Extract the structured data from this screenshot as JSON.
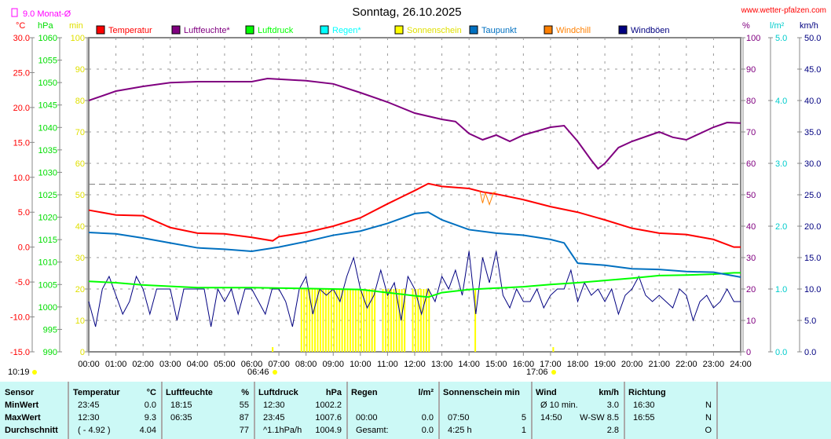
{
  "header": {
    "title": "Sonntag, 26.10.2025",
    "site": "www.wetter-pfalzen.com",
    "month_avg": "9.0 Monat-Ø"
  },
  "units": {
    "temp": "°C",
    "press": "hPa",
    "sun": "min",
    "hum": "%",
    "rain": "l/m²",
    "wind": "km/h"
  },
  "legend": [
    {
      "label": "Temperatur",
      "color": "#ff0000"
    },
    {
      "label": "Luftfeuchte*",
      "color": "#800080"
    },
    {
      "label": "Luftdruck",
      "color": "#00ff00"
    },
    {
      "label": "Regen*",
      "color": "#00ffff"
    },
    {
      "label": "Sonnenschein",
      "color": "#ffff00"
    },
    {
      "label": "Taupunkt",
      "color": "#0070c0"
    },
    {
      "label": "Windchill",
      "color": "#ff8000"
    },
    {
      "label": "Windböen",
      "color": "#000080"
    }
  ],
  "sun_events": {
    "day_length": "10:19",
    "sunrise": "06:46",
    "sunset": "17:06"
  },
  "chart_data": {
    "type": "line",
    "title": "Sonntag, 26.10.2025",
    "x_ticks": [
      "00:00",
      "01:00",
      "02:00",
      "03:00",
      "04:00",
      "05:00",
      "06:00",
      "07:00",
      "08:00",
      "09:00",
      "10:00",
      "11:00",
      "12:00",
      "13:00",
      "14:00",
      "15:00",
      "16:00",
      "17:00",
      "18:00",
      "19:00",
      "20:00",
      "21:00",
      "22:00",
      "23:00",
      "24:00"
    ],
    "axes": {
      "temp": {
        "range": [
          -15,
          30
        ],
        "ticks": [
          "30.0",
          "25.0",
          "20.0",
          "15.0",
          "10.0",
          "5.0",
          "0.0",
          "-5.0",
          "-10.0",
          "-15.0"
        ]
      },
      "press": {
        "range": [
          990,
          1060
        ],
        "ticks": [
          "1060",
          "1055",
          "1050",
          "1045",
          "1040",
          "1035",
          "1030",
          "1025",
          "1020",
          "1015",
          "1010",
          "1005",
          "1000",
          "995",
          "990"
        ]
      },
      "sun": {
        "range": [
          0,
          100
        ],
        "ticks": [
          "100",
          "90",
          "80",
          "70",
          "60",
          "50",
          "40",
          "30",
          "20",
          "10",
          "0"
        ]
      },
      "hum": {
        "range": [
          0,
          100
        ],
        "ticks": [
          "100",
          "90",
          "80",
          "70",
          "60",
          "50",
          "40",
          "30",
          "20",
          "10",
          "0"
        ]
      },
      "rain": {
        "range": [
          0,
          5
        ],
        "ticks": [
          "5.0",
          "4.0",
          "3.0",
          "2.0",
          "1.0",
          "0.0"
        ]
      },
      "wind": {
        "range": [
          0,
          50
        ],
        "ticks": [
          "50.0",
          "45.0",
          "40.0",
          "35.0",
          "30.0",
          "25.0",
          "20.0",
          "15.0",
          "10.0",
          "5.0",
          "0.0"
        ]
      }
    },
    "month_avg_temp": 9.0,
    "series": {
      "temperature": {
        "x": [
          0,
          1,
          2,
          3,
          4,
          5,
          6,
          6.77,
          7,
          8,
          9,
          10,
          11,
          12,
          12.5,
          13,
          14,
          14.5,
          15,
          16,
          17,
          18,
          19,
          20,
          21,
          22,
          23,
          23.75,
          24
        ],
        "y": [
          5.3,
          4.6,
          4.5,
          2.8,
          2.0,
          1.9,
          1.4,
          0.9,
          1.5,
          2.1,
          3.0,
          4.2,
          6.2,
          8.1,
          9.1,
          8.7,
          8.4,
          7.9,
          7.6,
          6.8,
          5.8,
          5.0,
          3.9,
          2.7,
          2.0,
          1.8,
          1.1,
          0.0,
          0.0
        ]
      },
      "dewpoint": {
        "x": [
          0,
          1,
          2,
          3,
          4,
          5,
          6,
          7,
          8,
          9,
          10,
          11,
          12,
          12.5,
          13,
          14,
          15,
          16,
          17,
          17.5,
          18,
          19,
          20,
          21,
          22,
          23,
          24
        ],
        "y": [
          2.1,
          1.9,
          1.3,
          0.6,
          -0.1,
          -0.3,
          -0.6,
          0.0,
          0.8,
          1.7,
          2.3,
          3.4,
          4.8,
          5.0,
          3.9,
          2.5,
          2.0,
          1.7,
          1.1,
          0.6,
          -2.3,
          -2.6,
          -3.1,
          -3.2,
          -3.5,
          -3.6,
          -4.3
        ]
      },
      "humidity": {
        "x": [
          0,
          1,
          2,
          3,
          4,
          6,
          6.58,
          8,
          9,
          10,
          11,
          12,
          13,
          13.5,
          14,
          14.5,
          15,
          15.5,
          16,
          17,
          17.5,
          18,
          18.5,
          18.75,
          19,
          19.5,
          20,
          21,
          21.5,
          22,
          23,
          23.5,
          24
        ],
        "y": [
          80,
          83,
          84.5,
          85.7,
          86,
          86,
          87,
          86.3,
          85.3,
          82.5,
          79.5,
          76,
          74,
          73.3,
          69.5,
          67.5,
          69,
          67,
          69,
          71.5,
          72,
          67,
          61,
          58.3,
          60,
          65,
          67,
          70,
          68.3,
          67.5,
          71.5,
          73,
          72.8
        ]
      },
      "pressure": {
        "x": [
          0,
          1,
          2,
          4,
          6,
          8,
          10,
          11,
          12,
          12.5,
          13,
          14,
          16,
          17,
          18,
          19,
          20,
          21,
          22,
          23,
          23.75,
          24
        ],
        "y": [
          1005.7,
          1005.4,
          1004.9,
          1004.3,
          1004.3,
          1004.1,
          1003.9,
          1003.2,
          1002.5,
          1002.2,
          1003.2,
          1003.9,
          1004.5,
          1005.0,
          1005.4,
          1005.9,
          1006.4,
          1007.0,
          1007.1,
          1007.3,
          1007.6,
          1007.6
        ]
      },
      "windchill": {
        "x": [
          14.4,
          14.5,
          14.6,
          14.75,
          14.9,
          15.0
        ],
        "y": [
          8.0,
          6.3,
          7.8,
          6.1,
          7.8,
          7.9
        ]
      },
      "gusts_15min": [
        8,
        4,
        10,
        12,
        9,
        6,
        8,
        12,
        10,
        6,
        10,
        10,
        10,
        5,
        10,
        10,
        10,
        10,
        4,
        10,
        8,
        10,
        6,
        10,
        10,
        8,
        6,
        10,
        10,
        8,
        4,
        10,
        12,
        6,
        10,
        9,
        10,
        8,
        12,
        15,
        10,
        7,
        9,
        13,
        9,
        11,
        5,
        12,
        10,
        6,
        10,
        8,
        12,
        10,
        13,
        9,
        16,
        6,
        15,
        11,
        16,
        9,
        7,
        10,
        8,
        8,
        10,
        7,
        9,
        10,
        10,
        13,
        8,
        11,
        9,
        10,
        8,
        10,
        6,
        9,
        10,
        12,
        9,
        8,
        9,
        8,
        7,
        10,
        9,
        5,
        8,
        9,
        7,
        8,
        10,
        8,
        8
      ],
      "sunshine_intervals_h": [
        [
          7.8,
          10.55
        ],
        [
          10.8,
          11.1
        ],
        [
          11.2,
          11.65
        ],
        [
          11.9,
          12.55
        ],
        [
          14.2,
          14.27
        ]
      ],
      "sunshine_level_min": 5
    }
  },
  "table": {
    "headers": {
      "sensor": "Sensor",
      "temp": "Temperatur",
      "temp_u": "°C",
      "hum": "Luftfeuchte",
      "hum_u": "%",
      "press": "Luftdruck",
      "press_u": "hPa",
      "rain": "Regen",
      "rain_u": "l/m²",
      "sun": "Sonnenschein min",
      "wind": "Wind",
      "wind_u": "km/h",
      "dir": "Richtung"
    },
    "rows": [
      {
        "label": "MinWert",
        "t_time": "23:45",
        "t_val": "0.0",
        "h_time": "18:15",
        "h_val": "55",
        "p_time": "12:30",
        "p_val": "1002.2",
        "r_time": "",
        "r_val": "",
        "s_time": "",
        "s_val": "",
        "w_time": "Ø 10 min.",
        "w_val": "3.0",
        "d_time": "16:30",
        "d_val": "N"
      },
      {
        "label": "MaxWert",
        "t_time": "12:30",
        "t_val": "9.3",
        "h_time": "06:35",
        "h_val": "87",
        "p_time": "23:45",
        "p_val": "1007.6",
        "r_time": "00:00",
        "r_val": "0.0",
        "s_time": "07:50",
        "s_val": "5",
        "w_time": "14:50",
        "w_val": "W-SW 8.5",
        "d_time": "16:55",
        "d_val": "N"
      },
      {
        "label": "Durchschnitt",
        "t_time": "( - 4.92 )",
        "t_val": "4.04",
        "h_time": "",
        "h_val": "77",
        "p_time": "^1.1hPa/h",
        "p_val": "1004.9",
        "r_time": "Gesamt:",
        "r_val": "0.0",
        "s_time": "4:25 h",
        "s_val": "1",
        "w_time": "",
        "w_val": "2.8",
        "d_time": "",
        "d_val": "O"
      }
    ]
  }
}
